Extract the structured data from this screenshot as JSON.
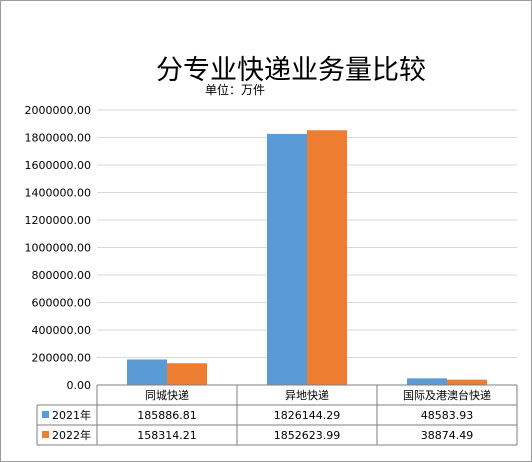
{
  "chart_data": {
    "type": "bar",
    "title": "分专业快递业务量比较",
    "subtitle": "单位：万件",
    "categories": [
      "同城快递",
      "异地快递",
      "国际及港澳台快递"
    ],
    "series": [
      {
        "name": "2021年",
        "color": "#5b9bd5",
        "values": [
          185886.81,
          1826144.29,
          48583.93
        ],
        "labels": [
          "185886.81",
          "1826144.29",
          "48583.93"
        ]
      },
      {
        "name": "2022年",
        "color": "#ed7d31",
        "values": [
          158314.21,
          1852623.99,
          38874.49
        ],
        "labels": [
          "158314.21",
          "1852623.99",
          "38874.49"
        ]
      }
    ],
    "ylim": [
      0,
      2000000
    ],
    "yticks": [
      "0.00",
      "200000.00",
      "400000.00",
      "600000.00",
      "800000.00",
      "1000000.00",
      "1200000.00",
      "1400000.00",
      "1600000.00",
      "1800000.00",
      "2000000.00"
    ],
    "grid": true,
    "legend": "data-table"
  }
}
